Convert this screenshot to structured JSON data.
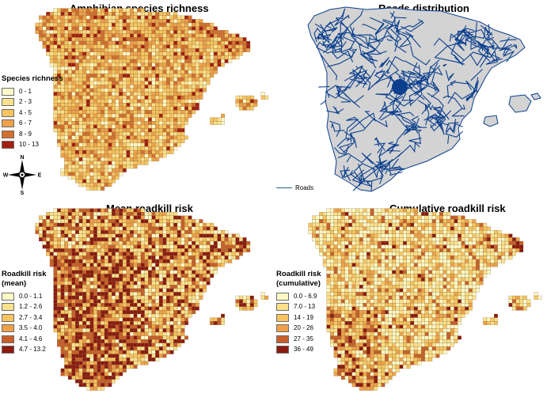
{
  "panels": [
    {
      "title": "Amphibian species richness",
      "legend_title": "Species richness",
      "legend": [
        {
          "label": "0 - 1",
          "color": "#fff8c6"
        },
        {
          "label": "2 - 3",
          "color": "#fde08b"
        },
        {
          "label": "4 - 5",
          "color": "#f7c460"
        },
        {
          "label": "6 - 7",
          "color": "#eea14a"
        },
        {
          "label": "8 - 9",
          "color": "#d4702e"
        },
        {
          "label": "10 - 13",
          "color": "#a31f10"
        }
      ],
      "weights": [
        0.08,
        0.22,
        0.32,
        0.22,
        0.11,
        0.05
      ]
    },
    {
      "title": "Roads distribution",
      "roads_legend_label": "Roads",
      "road_color": "#0b3f8e",
      "land_color": "#d3d3d3"
    },
    {
      "title": "Mean roadkill risk",
      "legend_title": "Roadkill risk\n(mean)",
      "legend": [
        {
          "label": "0.0 - 1.1",
          "color": "#fff8c6"
        },
        {
          "label": "1.2 - 2.6",
          "color": "#fde08b"
        },
        {
          "label": "2.7 - 3.4",
          "color": "#f7c460"
        },
        {
          "label": "3.5 - 4.0",
          "color": "#eea14a"
        },
        {
          "label": "4.1 - 4.6",
          "color": "#c8602a"
        },
        {
          "label": "4.7 - 13.2",
          "color": "#8b1a10"
        }
      ],
      "weights": [
        0.1,
        0.22,
        0.18,
        0.12,
        0.18,
        0.2
      ]
    },
    {
      "title": "Cumulative roadkill risk",
      "legend_title": "Roadkill risk\n(cumulative)",
      "legend": [
        {
          "label": "0.0 - 6.9",
          "color": "#fff8c6"
        },
        {
          "label": "7.0 - 13",
          "color": "#fde08b"
        },
        {
          "label": "14 - 19",
          "color": "#f7c460"
        },
        {
          "label": "20 - 26",
          "color": "#eea14a"
        },
        {
          "label": "27 - 35",
          "color": "#c8602a"
        },
        {
          "label": "36 - 49",
          "color": "#8b1a10"
        }
      ],
      "weights": [
        0.3,
        0.28,
        0.18,
        0.12,
        0.08,
        0.04
      ]
    }
  ],
  "compass": {
    "n": "N",
    "s": "S",
    "e": "E",
    "w": "W"
  }
}
